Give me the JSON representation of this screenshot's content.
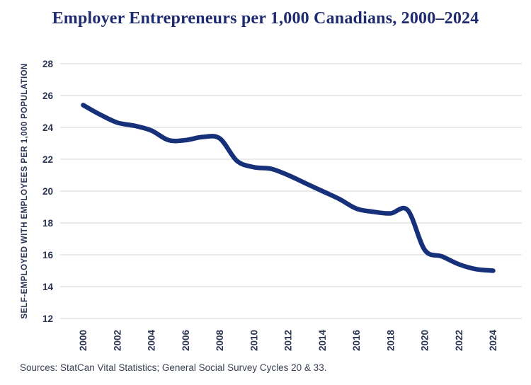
{
  "title": "Employer Entrepreneurs per 1,000 Canadians, 2000–2024",
  "source_note": "Sources: StatCan Vital Statistics; General Social Survey Cycles 20 & 33.",
  "colors": {
    "background": "#ffffff",
    "title_text": "#1e2b6e",
    "line": "#16307a",
    "axis_text": "#2b3553",
    "gridline": "#e9e9e9",
    "source_text": "#3a4154"
  },
  "chart_data": {
    "type": "line",
    "title": "Employer Entrepreneurs per 1,000 Canadians, 2000–2024",
    "x": [
      2000,
      2001,
      2002,
      2003,
      2004,
      2005,
      2006,
      2007,
      2008,
      2009,
      2010,
      2011,
      2012,
      2013,
      2014,
      2015,
      2016,
      2017,
      2018,
      2019,
      2020,
      2021,
      2022,
      2023,
      2024
    ],
    "series": [
      {
        "name": "Self-employed with employees per 1,000 population",
        "values": [
          25.4,
          24.8,
          24.3,
          24.1,
          23.8,
          23.2,
          23.2,
          23.4,
          23.3,
          21.9,
          21.5,
          21.4,
          21.0,
          20.5,
          20.0,
          19.5,
          18.9,
          18.7,
          18.6,
          18.8,
          16.3,
          15.9,
          15.4,
          15.1,
          15.0
        ]
      }
    ],
    "xlabel": "",
    "ylabel": "SELF-EMPLOYED WITH EMPLOYEES PER 1,000 POPULATION",
    "ylim": [
      12,
      28
    ],
    "yticks": [
      12,
      14,
      16,
      18,
      20,
      22,
      24,
      26,
      28
    ],
    "xticks": [
      2000,
      2002,
      2004,
      2006,
      2008,
      2010,
      2012,
      2014,
      2016,
      2018,
      2020,
      2022,
      2024
    ],
    "grid": "horizontal",
    "legend": "none",
    "line_style": "smooth"
  }
}
